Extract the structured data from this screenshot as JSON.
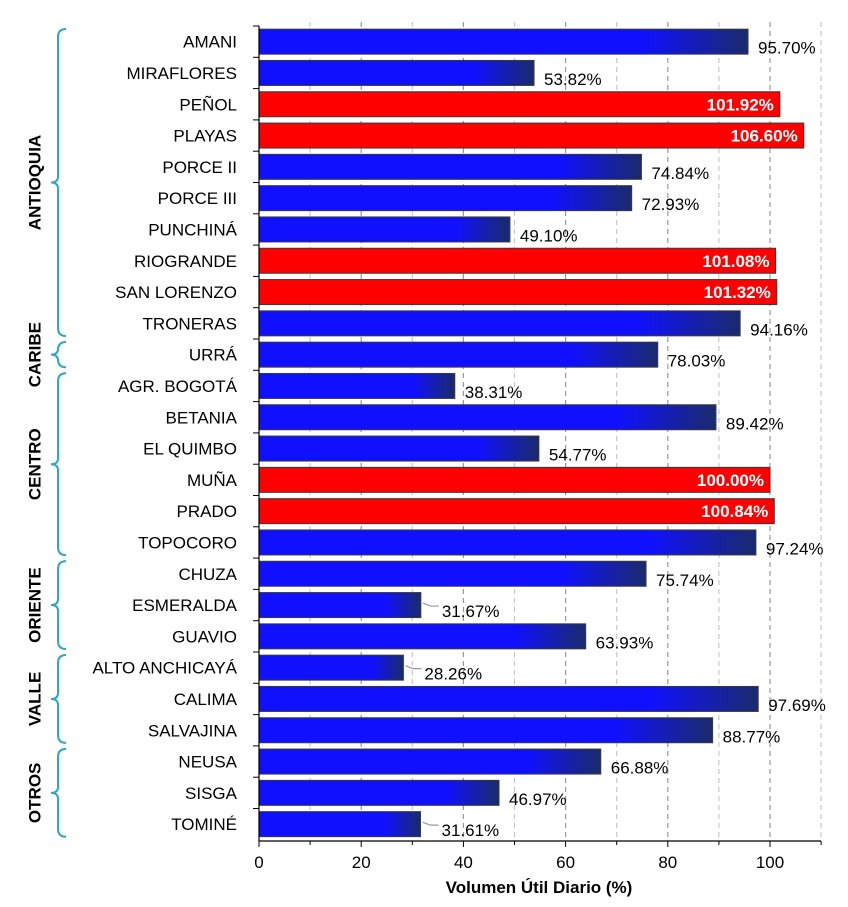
{
  "chart_data": {
    "type": "bar",
    "orientation": "horizontal",
    "title": "",
    "xlabel": "Volumen Útil Diario (%)",
    "xlim": [
      0,
      110
    ],
    "xticks": [
      "0",
      "20",
      "40",
      "60",
      "80",
      "100"
    ],
    "grid": "vertical dashed",
    "colors": {
      "normal": "#1010ff",
      "normal_end": "#1a2b6a",
      "over": "#ff0000",
      "group_brace": "#2aa7c9"
    },
    "categories": [
      "AMANI",
      "MIRAFLORES",
      "PEÑOL",
      "PLAYAS",
      "PORCE II",
      "PORCE III",
      "PUNCHINÁ",
      "RIOGRANDE",
      "SAN LORENZO",
      "TRONERAS",
      "URRÁ",
      "AGR. BOGOTÁ",
      "BETANIA",
      "EL QUIMBO",
      "MUÑA",
      "PRADO",
      "TOPOCORO",
      "CHUZA",
      "ESMERALDA",
      "GUAVIO",
      "ALTO ANCHICAYÁ",
      "CALIMA",
      "SALVAJINA",
      "NEUSA",
      "SISGA",
      "TOMINÉ"
    ],
    "values": [
      95.7,
      53.82,
      101.92,
      106.6,
      74.84,
      72.93,
      49.1,
      101.08,
      101.32,
      94.16,
      78.03,
      38.31,
      89.42,
      54.77,
      100.0,
      100.84,
      97.24,
      75.74,
      31.67,
      63.93,
      28.26,
      97.69,
      88.77,
      66.88,
      46.97,
      31.61
    ],
    "labels": [
      "95.70%",
      "53.82%",
      "101.92%",
      "106.60%",
      "74.84%",
      "72.93%",
      "49.10%",
      "101.08%",
      "101.32%",
      "94.16%",
      "78.03%",
      "38.31%",
      "89.42%",
      "54.77%",
      "100.00%",
      "100.84%",
      "97.24%",
      "75.74%",
      "31.67%",
      "63.93%",
      "28.26%",
      "97.69%",
      "88.77%",
      "66.88%",
      "46.97%",
      "31.61%"
    ],
    "groups": [
      {
        "name": "ANTIOQUIA",
        "start": 0,
        "end": 9
      },
      {
        "name": "CARIBE",
        "start": 10,
        "end": 10
      },
      {
        "name": "CENTRO",
        "start": 11,
        "end": 16
      },
      {
        "name": "ORIENTE",
        "start": 17,
        "end": 19
      },
      {
        "name": "VALLE",
        "start": 20,
        "end": 22
      },
      {
        "name": "OTROS",
        "start": 23,
        "end": 25
      }
    ]
  }
}
